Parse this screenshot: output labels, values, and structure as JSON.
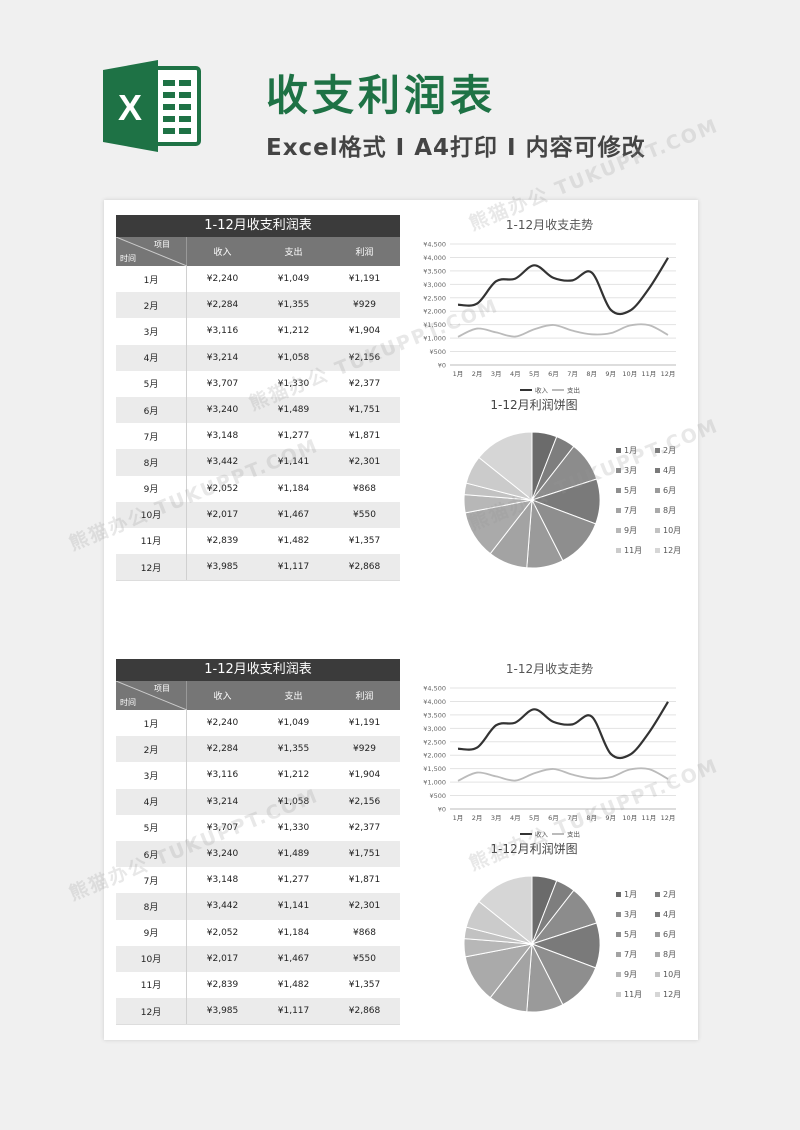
{
  "header": {
    "logo_letter": "X",
    "title": "收支利润表",
    "subtitle": "Excel格式 I A4打印 I 内容可修改"
  },
  "colors": {
    "brand_green": "#1e7245",
    "table_title_bg": "#3b3b3b",
    "table_head_bg": "#767676",
    "income_line": "#333333",
    "expense_line": "#bbbbbb"
  },
  "table": {
    "title": "1-12月收支利润表",
    "corner_top": "项目",
    "corner_bottom": "时间",
    "headers": [
      "收入",
      "支出",
      "利润"
    ],
    "rows": [
      [
        "1月",
        "¥2,240",
        "¥1,049",
        "¥1,191"
      ],
      [
        "2月",
        "¥2,284",
        "¥1,355",
        "¥929"
      ],
      [
        "3月",
        "¥3,116",
        "¥1,212",
        "¥1,904"
      ],
      [
        "4月",
        "¥3,214",
        "¥1,058",
        "¥2,156"
      ],
      [
        "5月",
        "¥3,707",
        "¥1,330",
        "¥2,377"
      ],
      [
        "6月",
        "¥3,240",
        "¥1,489",
        "¥1,751"
      ],
      [
        "7月",
        "¥3,148",
        "¥1,277",
        "¥1,871"
      ],
      [
        "8月",
        "¥3,442",
        "¥1,141",
        "¥2,301"
      ],
      [
        "9月",
        "¥2,052",
        "¥1,184",
        "¥868"
      ],
      [
        "10月",
        "¥2,017",
        "¥1,467",
        "¥550"
      ],
      [
        "11月",
        "¥2,839",
        "¥1,482",
        "¥1,357"
      ],
      [
        "12月",
        "¥3,985",
        "¥1,117",
        "¥2,868"
      ]
    ]
  },
  "chart_data": [
    {
      "type": "line",
      "title": "1-12月收支走势",
      "x": [
        "1月",
        "2月",
        "3月",
        "4月",
        "5月",
        "6月",
        "7月",
        "8月",
        "9月",
        "10月",
        "11月",
        "12月"
      ],
      "ylim": [
        0,
        4500
      ],
      "yticks": [
        "¥0",
        "¥500",
        "¥1,000",
        "¥1,500",
        "¥2,000",
        "¥2,500",
        "¥3,000",
        "¥3,500",
        "¥4,000",
        "¥4,500"
      ],
      "grid": true,
      "legend": "bottom",
      "series": [
        {
          "name": "收入",
          "values": [
            2240,
            2284,
            3116,
            3214,
            3707,
            3240,
            3148,
            3442,
            2052,
            2017,
            2839,
            3985
          ]
        },
        {
          "name": "支出",
          "values": [
            1049,
            1355,
            1212,
            1058,
            1330,
            1489,
            1277,
            1141,
            1184,
            1467,
            1482,
            1117
          ]
        }
      ]
    },
    {
      "type": "pie",
      "title": "1-12月利润饼图",
      "legend": "right",
      "categories": [
        "1月",
        "2月",
        "3月",
        "4月",
        "5月",
        "6月",
        "7月",
        "8月",
        "9月",
        "10月",
        "11月",
        "12月"
      ],
      "values": [
        1191,
        929,
        1904,
        2156,
        2377,
        1751,
        1871,
        2301,
        868,
        550,
        1357,
        2868
      ]
    }
  ],
  "pie_colors": [
    "#6b6b6b",
    "#7e7e7e",
    "#8c8c8c",
    "#7a7a7a",
    "#8e8e8e",
    "#9a9a9a",
    "#a3a3a3",
    "#aaaaaa",
    "#b7b7b7",
    "#c2c2c2",
    "#cbcbcb",
    "#d6d6d6"
  ],
  "watermarks": [
    "熊猫办公 TUKUPPT.COM",
    "熊猫办公 TUKUPPT.COM",
    "熊猫办公 TUKUPPT.COM",
    "熊猫办公 TUKUPPT.COM",
    "熊猫办公 TUKUPPT.COM",
    "熊猫办公 TUKUPPT.COM"
  ]
}
